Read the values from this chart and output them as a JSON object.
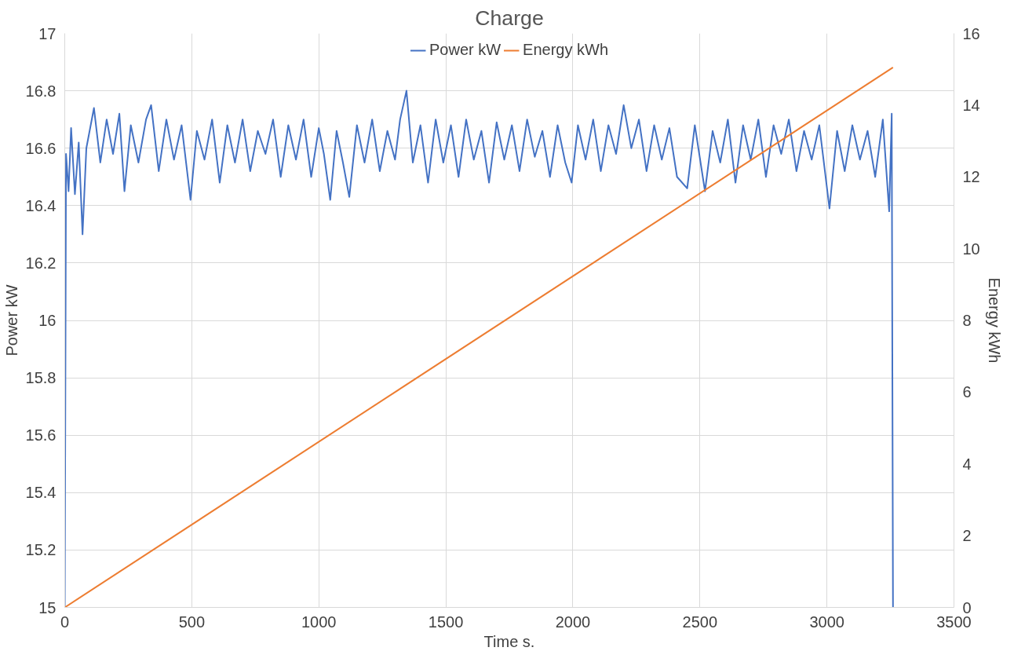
{
  "chart_data": {
    "type": "line",
    "title": "Charge",
    "xlabel": "Time s.",
    "ylabel": "Power kW",
    "y2label": "Energy kWh",
    "xlim": [
      0,
      3500
    ],
    "xticks": [
      0,
      500,
      1000,
      1500,
      2000,
      2500,
      3000,
      3500
    ],
    "ylim": [
      15,
      17
    ],
    "yticks": [
      15,
      15.2,
      15.4,
      15.6,
      15.8,
      16,
      16.2,
      16.4,
      16.6,
      16.8,
      17
    ],
    "y2lim": [
      0,
      16
    ],
    "y2ticks": [
      0,
      2,
      4,
      6,
      8,
      10,
      12,
      14,
      16
    ],
    "grid": true,
    "legend": "top",
    "marker": "none",
    "line_style": "solid",
    "series": [
      {
        "name": "Power kW",
        "color": "#4472c4",
        "x": [
          0,
          5,
          15,
          25,
          40,
          55,
          70,
          85,
          115,
          140,
          165,
          190,
          215,
          235,
          260,
          290,
          320,
          340,
          370,
          400,
          430,
          460,
          495,
          520,
          550,
          580,
          610,
          640,
          670,
          700,
          730,
          760,
          790,
          820,
          850,
          880,
          910,
          940,
          970,
          1000,
          1020,
          1045,
          1070,
          1095,
          1120,
          1150,
          1180,
          1210,
          1240,
          1270,
          1300,
          1320,
          1345,
          1370,
          1400,
          1430,
          1460,
          1490,
          1520,
          1550,
          1580,
          1610,
          1640,
          1670,
          1700,
          1730,
          1760,
          1790,
          1820,
          1850,
          1880,
          1910,
          1940,
          1970,
          1995,
          2020,
          2050,
          2080,
          2110,
          2140,
          2170,
          2200,
          2230,
          2260,
          2290,
          2320,
          2350,
          2380,
          2410,
          2450,
          2480,
          2520,
          2550,
          2580,
          2610,
          2640,
          2670,
          2700,
          2730,
          2760,
          2790,
          2820,
          2850,
          2880,
          2910,
          2940,
          2970,
          3010,
          3040,
          3070,
          3100,
          3130,
          3160,
          3190,
          3220,
          3245,
          3255,
          3260
        ],
        "values": [
          15,
          16.58,
          16.45,
          16.67,
          16.44,
          16.62,
          16.3,
          16.6,
          16.74,
          16.55,
          16.7,
          16.58,
          16.72,
          16.45,
          16.68,
          16.55,
          16.7,
          16.75,
          16.52,
          16.7,
          16.56,
          16.68,
          16.42,
          16.66,
          16.56,
          16.7,
          16.48,
          16.68,
          16.55,
          16.7,
          16.52,
          16.66,
          16.58,
          16.7,
          16.5,
          16.68,
          16.56,
          16.7,
          16.5,
          16.67,
          16.58,
          16.42,
          16.66,
          16.55,
          16.43,
          16.68,
          16.55,
          16.7,
          16.52,
          16.66,
          16.56,
          16.7,
          16.8,
          16.55,
          16.68,
          16.48,
          16.7,
          16.55,
          16.68,
          16.5,
          16.7,
          16.56,
          16.66,
          16.48,
          16.69,
          16.56,
          16.68,
          16.52,
          16.7,
          16.57,
          16.66,
          16.5,
          16.68,
          16.55,
          16.48,
          16.68,
          16.56,
          16.7,
          16.52,
          16.68,
          16.58,
          16.75,
          16.6,
          16.7,
          16.52,
          16.68,
          16.56,
          16.67,
          16.5,
          16.46,
          16.68,
          16.45,
          16.66,
          16.55,
          16.7,
          16.48,
          16.68,
          16.56,
          16.7,
          16.5,
          16.68,
          16.58,
          16.7,
          16.52,
          16.66,
          16.56,
          16.68,
          16.39,
          16.66,
          16.52,
          16.68,
          16.56,
          16.66,
          16.5,
          16.7,
          16.38,
          16.72,
          15
        ]
      },
      {
        "name": "Energy kWh",
        "color": "#ed7d31",
        "axis": "y2",
        "x": [
          0,
          3260
        ],
        "values": [
          0,
          15.05
        ]
      }
    ]
  }
}
